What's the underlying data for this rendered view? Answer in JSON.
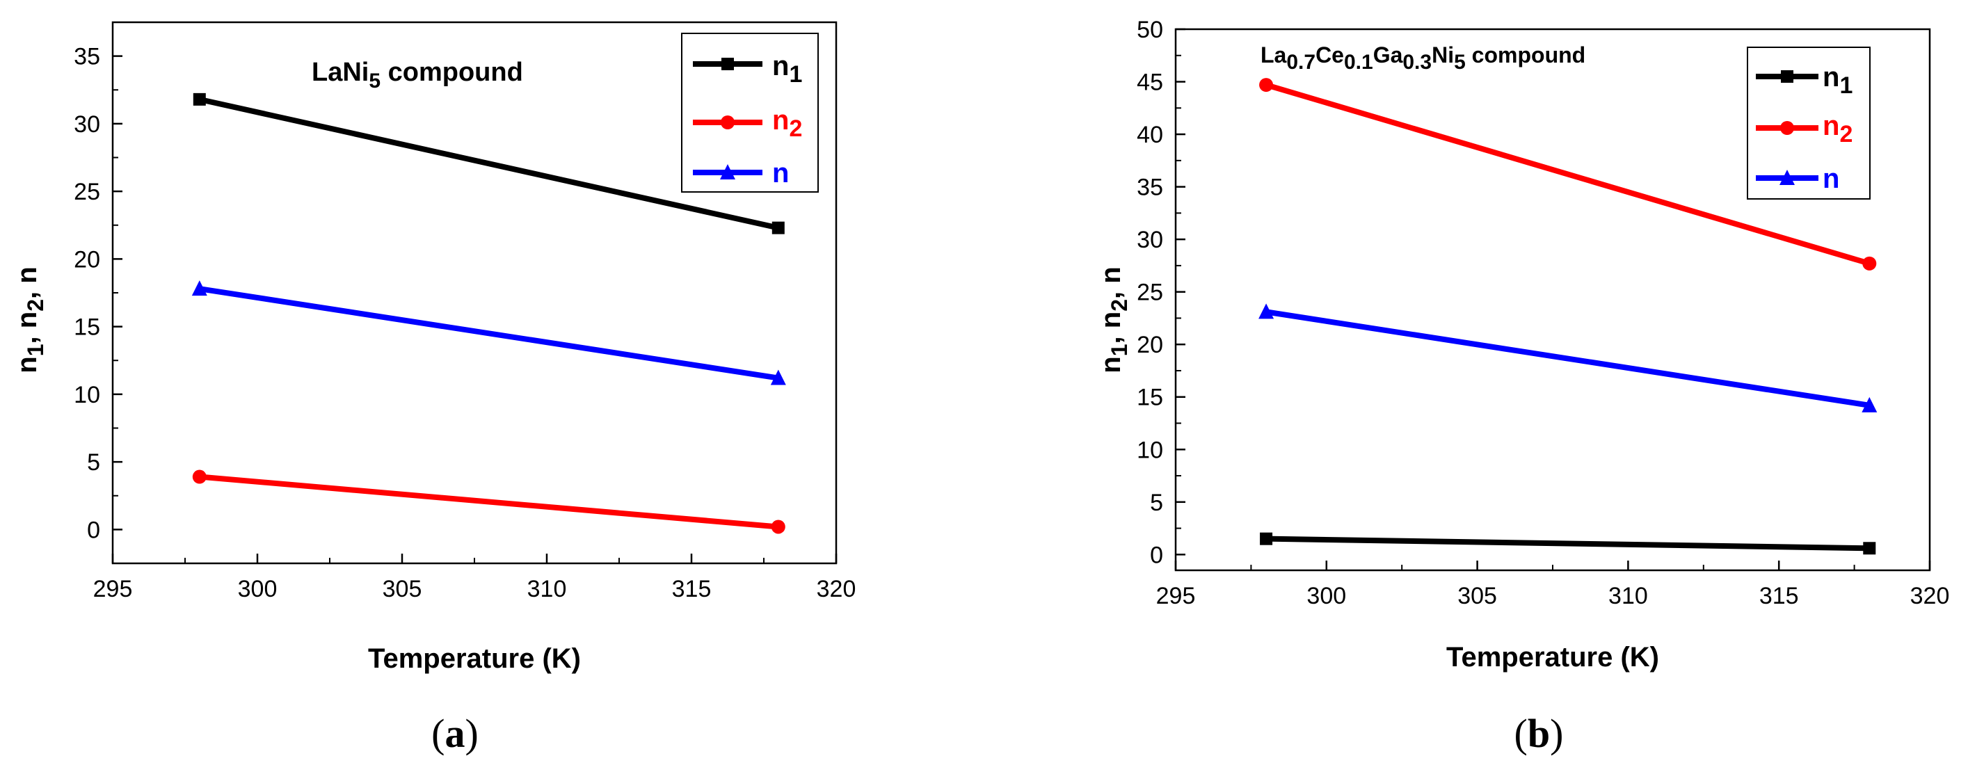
{
  "chart_data": [
    {
      "type": "line",
      "panel_label_open": "(",
      "panel_label_letter": "a",
      "panel_label_close": ")",
      "annotation": {
        "base": "LaNi",
        "sub": "5",
        "rest": " compound"
      },
      "xlabel": "Temperature (K)",
      "ylabel": {
        "p1": "n",
        "s1": "1",
        "p2": ", n",
        "s2": "2",
        "p3": ", n"
      },
      "xlim": [
        295,
        320
      ],
      "ylim": [
        -2.5,
        37.5
      ],
      "xticks": [
        295,
        300,
        305,
        310,
        315,
        320
      ],
      "yticks": [
        0,
        5,
        10,
        15,
        20,
        25,
        30,
        35
      ],
      "x": [
        298,
        318
      ],
      "series": [
        {
          "name": "n",
          "sub": "1",
          "color": "#000000",
          "marker": "square",
          "values": [
            31.8,
            22.3
          ]
        },
        {
          "name": "n",
          "sub": "2",
          "color": "#ff0000",
          "marker": "circle",
          "values": [
            3.9,
            0.2
          ]
        },
        {
          "name": "n",
          "sub": "",
          "color": "#0000ff",
          "marker": "triangle",
          "values": [
            17.8,
            11.2
          ]
        }
      ],
      "legend_position": "top-right"
    },
    {
      "type": "line",
      "panel_label_open": "(",
      "panel_label_letter": "b",
      "panel_label_close": ")",
      "annotation": {
        "p1": "La",
        "s1": "0.7",
        "p2": "Ce",
        "s2": "0.1",
        "p3": "Ga",
        "s3": "0.3",
        "p4": "Ni",
        "s4": "5",
        "rest": " compound"
      },
      "xlabel": "Temperature (K)",
      "ylabel": {
        "p1": "n",
        "s1": "1",
        "p2": ", n",
        "s2": "2",
        "p3": ", n"
      },
      "xlim": [
        295,
        320
      ],
      "ylim": [
        -1.5,
        50
      ],
      "xticks": [
        295,
        300,
        305,
        310,
        315,
        320
      ],
      "yticks": [
        0,
        5,
        10,
        15,
        20,
        25,
        30,
        35,
        40,
        45,
        50
      ],
      "x": [
        298,
        318
      ],
      "series": [
        {
          "name": "n",
          "sub": "1",
          "color": "#000000",
          "marker": "square",
          "values": [
            1.5,
            0.6
          ]
        },
        {
          "name": "n",
          "sub": "2",
          "color": "#ff0000",
          "marker": "circle",
          "values": [
            44.7,
            27.7
          ]
        },
        {
          "name": "n",
          "sub": "",
          "color": "#0000ff",
          "marker": "triangle",
          "values": [
            23.1,
            14.2
          ]
        }
      ],
      "legend_position": "top-right"
    }
  ]
}
